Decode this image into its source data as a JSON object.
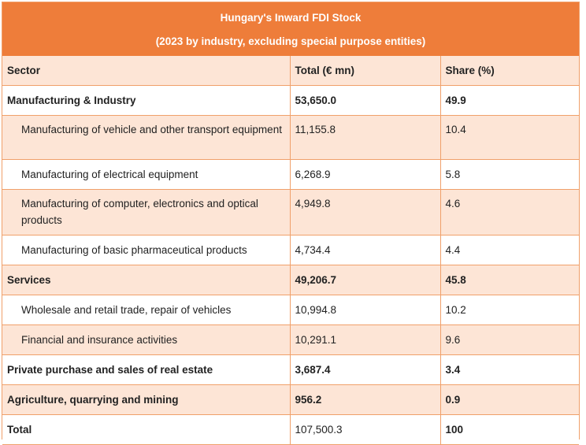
{
  "header": {
    "title": "Hungary's Inward FDI Stock",
    "subtitle": "(2023 by industry, excluding special purpose entities)"
  },
  "columns": {
    "sector": "Sector",
    "total": "Total (€ mn)",
    "share": "Share (%)"
  },
  "rows": [
    {
      "sector": "Manufacturing & Industry",
      "total": "53,650.0",
      "share": "49.9"
    },
    {
      "sector": "Manufacturing of vehicle and other transport equipment",
      "total": "11,155.8",
      "share": "10.4"
    },
    {
      "sector": "Manufacturing of electrical equipment",
      "total": "6,268.9",
      "share": "5.8"
    },
    {
      "sector": "Manufacturing of computer, electronics and optical products",
      "total": "4,949.8",
      "share": "4.6"
    },
    {
      "sector": "Manufacturing of basic pharmaceutical products",
      "total": "4,734.4",
      "share": "4.4"
    },
    {
      "sector": "Services",
      "total": "49,206.7",
      "share": "45.8"
    },
    {
      "sector": "Wholesale and retail trade, repair of vehicles",
      "total": "10,994.8",
      "share": "10.2"
    },
    {
      "sector": "Financial and insurance activities",
      "total": "10,291.1",
      "share": "9.6"
    },
    {
      "sector": "Private purchase and sales of real estate",
      "total": "3,687.4",
      "share": "3.4"
    },
    {
      "sector": "Agriculture, quarrying and mining",
      "total": "956.2",
      "share": "0.9"
    },
    {
      "sector": "Total",
      "total": "107,500.3",
      "share": "100"
    }
  ]
}
